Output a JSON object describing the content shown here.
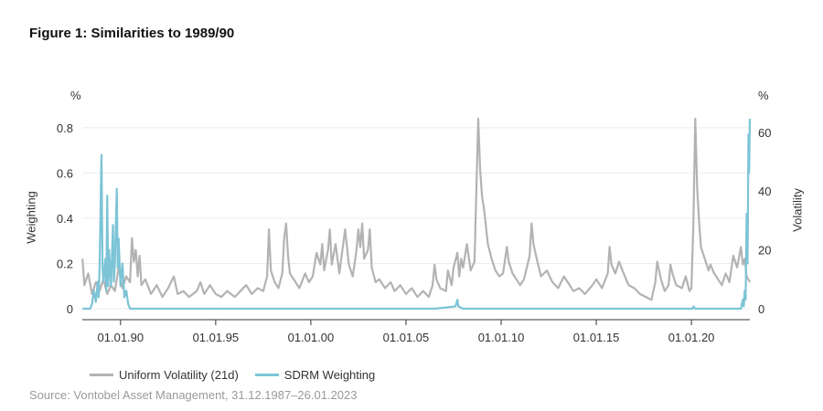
{
  "header": {
    "title": "Figure 1: Similarities to 1989/90"
  },
  "units": {
    "left": "%",
    "right": "%"
  },
  "source": "Source: Vontobel Asset Management, 31.12.1987–26.01.2023",
  "colors": {
    "volatility": "#b3b3b3",
    "sdrm": "#7cc4d6",
    "grid": "#ececec",
    "axis": "#333333"
  },
  "chart_data": {
    "type": "line",
    "xlabel": "",
    "ylabel": "Weighting",
    "y2label": "Volatility",
    "xlim": [
      1987.99,
      2023.07
    ],
    "ylim": [
      0,
      0.84
    ],
    "y2lim": [
      0,
      64.6
    ],
    "x_ticks": [
      {
        "x": 1990,
        "label": "01.01.90"
      },
      {
        "x": 1995,
        "label": "01.01.95"
      },
      {
        "x": 2000,
        "label": "01.01.00"
      },
      {
        "x": 2005,
        "label": "01.01.05"
      },
      {
        "x": 2010,
        "label": "01.01.10"
      },
      {
        "x": 2015,
        "label": "01.01.15"
      },
      {
        "x": 2020,
        "label": "01.01.20"
      }
    ],
    "y_ticks": [
      {
        "v": 0,
        "label": "0"
      },
      {
        "v": 0.2,
        "label": "0.2"
      },
      {
        "v": 0.4,
        "label": "0.4"
      },
      {
        "v": 0.6,
        "label": "0.6"
      },
      {
        "v": 0.8,
        "label": "0.8"
      }
    ],
    "y2_ticks": [
      {
        "v": 0,
        "label": "0"
      },
      {
        "v": 20,
        "label": "20"
      },
      {
        "v": 40,
        "label": "40"
      },
      {
        "v": 60,
        "label": "60"
      }
    ],
    "series": [
      {
        "name": "Uniform Volatility (21d)",
        "axis": "right",
        "points": [
          [
            1988.0,
            17
          ],
          [
            1988.1,
            8
          ],
          [
            1988.3,
            12
          ],
          [
            1988.5,
            5
          ],
          [
            1988.7,
            9
          ],
          [
            1988.9,
            6
          ],
          [
            1989.1,
            10
          ],
          [
            1989.3,
            5
          ],
          [
            1989.5,
            8
          ],
          [
            1989.7,
            6
          ],
          [
            1989.9,
            14
          ],
          [
            1990.1,
            7
          ],
          [
            1990.3,
            11
          ],
          [
            1990.5,
            9
          ],
          [
            1990.6,
            24
          ],
          [
            1990.7,
            16
          ],
          [
            1990.8,
            20
          ],
          [
            1990.9,
            11
          ],
          [
            1991.0,
            18
          ],
          [
            1991.1,
            8
          ],
          [
            1991.3,
            10
          ],
          [
            1991.6,
            5
          ],
          [
            1991.9,
            8
          ],
          [
            1992.2,
            4
          ],
          [
            1992.5,
            7
          ],
          [
            1992.8,
            11
          ],
          [
            1993.0,
            5
          ],
          [
            1993.3,
            6
          ],
          [
            1993.6,
            4
          ],
          [
            1994.0,
            6
          ],
          [
            1994.2,
            9
          ],
          [
            1994.4,
            5
          ],
          [
            1994.7,
            8
          ],
          [
            1995.0,
            5
          ],
          [
            1995.3,
            4
          ],
          [
            1995.6,
            6
          ],
          [
            1996.0,
            4
          ],
          [
            1996.3,
            6
          ],
          [
            1996.6,
            8
          ],
          [
            1996.9,
            5
          ],
          [
            1997.2,
            7
          ],
          [
            1997.5,
            6
          ],
          [
            1997.7,
            11
          ],
          [
            1997.8,
            27
          ],
          [
            1997.9,
            13
          ],
          [
            1998.1,
            9
          ],
          [
            1998.3,
            7
          ],
          [
            1998.5,
            12
          ],
          [
            1998.6,
            24
          ],
          [
            1998.7,
            29
          ],
          [
            1998.8,
            18
          ],
          [
            1998.9,
            12
          ],
          [
            1999.1,
            10
          ],
          [
            1999.4,
            7
          ],
          [
            1999.7,
            12
          ],
          [
            1999.9,
            9
          ],
          [
            2000.1,
            11
          ],
          [
            2000.3,
            19
          ],
          [
            2000.5,
            15
          ],
          [
            2000.6,
            22
          ],
          [
            2000.7,
            13
          ],
          [
            2000.9,
            20
          ],
          [
            2001.0,
            27
          ],
          [
            2001.1,
            15
          ],
          [
            2001.3,
            22
          ],
          [
            2001.5,
            12
          ],
          [
            2001.7,
            22
          ],
          [
            2001.8,
            27
          ],
          [
            2002.0,
            15
          ],
          [
            2002.2,
            11
          ],
          [
            2002.4,
            20
          ],
          [
            2002.5,
            27
          ],
          [
            2002.6,
            21
          ],
          [
            2002.7,
            29
          ],
          [
            2002.8,
            17
          ],
          [
            2003.0,
            20
          ],
          [
            2003.1,
            27
          ],
          [
            2003.2,
            14
          ],
          [
            2003.4,
            9
          ],
          [
            2003.6,
            10
          ],
          [
            2003.9,
            7
          ],
          [
            2004.2,
            9
          ],
          [
            2004.4,
            6
          ],
          [
            2004.7,
            8
          ],
          [
            2005.0,
            5
          ],
          [
            2005.3,
            7
          ],
          [
            2005.6,
            4
          ],
          [
            2005.9,
            6
          ],
          [
            2006.2,
            4
          ],
          [
            2006.4,
            8
          ],
          [
            2006.5,
            15
          ],
          [
            2006.6,
            10
          ],
          [
            2006.8,
            7
          ],
          [
            2007.1,
            6
          ],
          [
            2007.2,
            13
          ],
          [
            2007.4,
            8
          ],
          [
            2007.5,
            14
          ],
          [
            2007.7,
            19
          ],
          [
            2007.8,
            11
          ],
          [
            2007.9,
            17
          ],
          [
            2008.0,
            14
          ],
          [
            2008.2,
            22
          ],
          [
            2008.4,
            13
          ],
          [
            2008.6,
            16
          ],
          [
            2008.7,
            41
          ],
          [
            2008.8,
            64.6
          ],
          [
            2008.9,
            47
          ],
          [
            2009.0,
            38
          ],
          [
            2009.1,
            34
          ],
          [
            2009.3,
            22
          ],
          [
            2009.5,
            17
          ],
          [
            2009.7,
            13
          ],
          [
            2009.9,
            11
          ],
          [
            2010.1,
            12
          ],
          [
            2010.3,
            21
          ],
          [
            2010.4,
            16
          ],
          [
            2010.6,
            12
          ],
          [
            2010.8,
            10
          ],
          [
            2011.0,
            8
          ],
          [
            2011.2,
            10
          ],
          [
            2011.5,
            18
          ],
          [
            2011.6,
            29
          ],
          [
            2011.7,
            22
          ],
          [
            2011.9,
            16
          ],
          [
            2012.1,
            11
          ],
          [
            2012.4,
            13
          ],
          [
            2012.7,
            9
          ],
          [
            2013.0,
            7
          ],
          [
            2013.3,
            11
          ],
          [
            2013.5,
            9
          ],
          [
            2013.8,
            6
          ],
          [
            2014.1,
            7
          ],
          [
            2014.4,
            5
          ],
          [
            2014.8,
            8
          ],
          [
            2015.0,
            10
          ],
          [
            2015.3,
            7
          ],
          [
            2015.6,
            12
          ],
          [
            2015.7,
            21
          ],
          [
            2015.8,
            15
          ],
          [
            2016.0,
            12
          ],
          [
            2016.2,
            16
          ],
          [
            2016.5,
            11
          ],
          [
            2016.7,
            8
          ],
          [
            2017.0,
            7
          ],
          [
            2017.3,
            5
          ],
          [
            2017.6,
            4
          ],
          [
            2017.9,
            3
          ],
          [
            2018.1,
            9
          ],
          [
            2018.2,
            16
          ],
          [
            2018.4,
            10
          ],
          [
            2018.6,
            6
          ],
          [
            2018.8,
            8
          ],
          [
            2018.9,
            15
          ],
          [
            2019.0,
            12
          ],
          [
            2019.2,
            8
          ],
          [
            2019.5,
            7
          ],
          [
            2019.7,
            11
          ],
          [
            2019.9,
            6
          ],
          [
            2020.0,
            7
          ],
          [
            2020.1,
            28
          ],
          [
            2020.2,
            64.6
          ],
          [
            2020.3,
            41
          ],
          [
            2020.4,
            30
          ],
          [
            2020.5,
            21
          ],
          [
            2020.7,
            17
          ],
          [
            2020.9,
            13
          ],
          [
            2021.0,
            15
          ],
          [
            2021.2,
            12
          ],
          [
            2021.4,
            10
          ],
          [
            2021.6,
            8
          ],
          [
            2021.8,
            12
          ],
          [
            2022.0,
            9
          ],
          [
            2022.2,
            18
          ],
          [
            2022.4,
            14
          ],
          [
            2022.6,
            21
          ],
          [
            2022.7,
            15
          ],
          [
            2022.8,
            17
          ],
          [
            2022.9,
            11
          ],
          [
            2023.07,
            9
          ]
        ]
      },
      {
        "name": "SDRM Weighting",
        "axis": "left",
        "points": [
          [
            1988.0,
            0.0
          ],
          [
            1988.4,
            0.0
          ],
          [
            1988.5,
            0.02
          ],
          [
            1988.6,
            0.08
          ],
          [
            1988.7,
            0.03
          ],
          [
            1988.8,
            0.12
          ],
          [
            1988.85,
            0.05
          ],
          [
            1988.9,
            0.18
          ],
          [
            1989.0,
            0.68
          ],
          [
            1989.05,
            0.18
          ],
          [
            1989.1,
            0.12
          ],
          [
            1989.2,
            0.22
          ],
          [
            1989.25,
            0.08
          ],
          [
            1989.3,
            0.5
          ],
          [
            1989.35,
            0.1
          ],
          [
            1989.4,
            0.26
          ],
          [
            1989.5,
            0.1
          ],
          [
            1989.6,
            0.37
          ],
          [
            1989.65,
            0.12
          ],
          [
            1989.7,
            0.2
          ],
          [
            1989.8,
            0.53
          ],
          [
            1989.85,
            0.18
          ],
          [
            1989.9,
            0.31
          ],
          [
            1990.0,
            0.1
          ],
          [
            1990.1,
            0.2
          ],
          [
            1990.2,
            0.05
          ],
          [
            1990.3,
            0.08
          ],
          [
            1990.4,
            0.02
          ],
          [
            1990.5,
            0.0
          ],
          [
            1991.0,
            0.0
          ],
          [
            1997.0,
            0.0
          ],
          [
            2003.0,
            0.0
          ],
          [
            2005.0,
            0.0
          ],
          [
            2006.5,
            0.0
          ],
          [
            2007.6,
            0.01
          ],
          [
            2007.7,
            0.04
          ],
          [
            2007.75,
            0.01
          ],
          [
            2008.0,
            0.0
          ],
          [
            2015.0,
            0.0
          ],
          [
            2019.9,
            0.0
          ],
          [
            2020.05,
            0.0
          ],
          [
            2020.1,
            0.01
          ],
          [
            2020.2,
            0.0
          ],
          [
            2022.0,
            0.0
          ],
          [
            2022.6,
            0.0
          ],
          [
            2022.7,
            0.04
          ],
          [
            2022.75,
            0.01
          ],
          [
            2022.8,
            0.08
          ],
          [
            2022.85,
            0.04
          ],
          [
            2022.9,
            0.42
          ],
          [
            2022.95,
            0.2
          ],
          [
            2023.0,
            0.77
          ],
          [
            2023.03,
            0.6
          ],
          [
            2023.07,
            0.84
          ]
        ]
      }
    ],
    "legend": "bottom-left"
  }
}
